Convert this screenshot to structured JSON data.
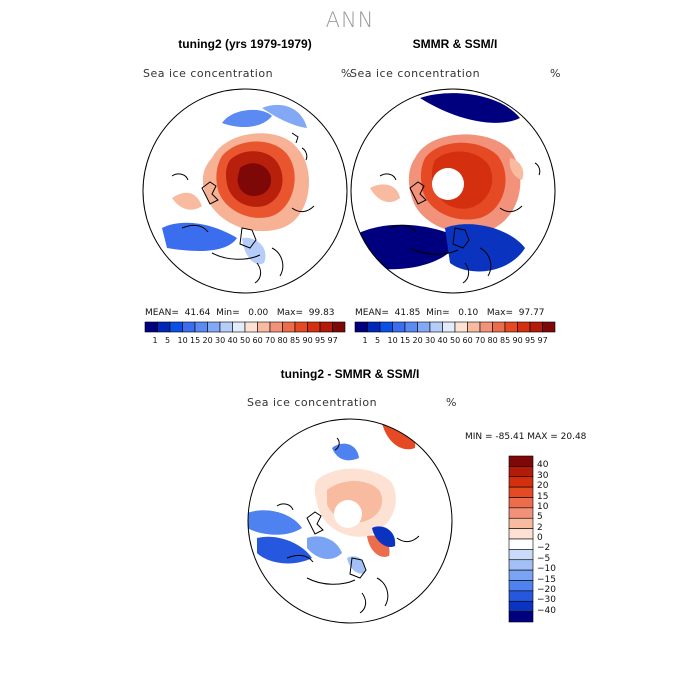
{
  "main_title": "ANN",
  "panel_left": {
    "title": "tuning2 (yrs 1979-1979)",
    "field_label": "Sea ice concentration",
    "units": "%",
    "stats": {
      "mean_label": "MEAN=",
      "mean": "41.64",
      "min_label": "Min=",
      "min": "0.00",
      "max_label": "Max=",
      "max": "99.83"
    }
  },
  "panel_right": {
    "title": "SMMR & SSM/I",
    "field_label": "Sea ice concentration",
    "units": "%",
    "stats": {
      "mean_label": "MEAN=",
      "mean": "41.85",
      "min_label": "Min=",
      "min": "0.10",
      "max_label": "Max=",
      "max": "97.77"
    }
  },
  "panel_diff": {
    "title": "tuning2 - SMMR & SSM/I",
    "field_label": "Sea ice concentration",
    "units": "%",
    "minmax_text": "MIN = -85.41 MAX =  20.48"
  },
  "chart_data": [
    {
      "type": "heatmap",
      "title": "tuning2 (yrs 1979-1979)",
      "variable": "Sea ice concentration",
      "units": "%",
      "projection": "north polar stereographic",
      "mean": 41.64,
      "min": 0.0,
      "max": 99.83,
      "colorbar_levels": [
        1,
        5,
        10,
        15,
        20,
        30,
        40,
        50,
        60,
        70,
        80,
        85,
        90,
        95,
        97
      ]
    },
    {
      "type": "heatmap",
      "title": "SMMR & SSM/I",
      "variable": "Sea ice concentration",
      "units": "%",
      "projection": "north polar stereographic",
      "mean": 41.85,
      "min": 0.1,
      "max": 97.77,
      "colorbar_levels": [
        1,
        5,
        10,
        15,
        20,
        30,
        40,
        50,
        60,
        70,
        80,
        85,
        90,
        95,
        97
      ]
    },
    {
      "type": "heatmap",
      "title": "tuning2 - SMMR & SSM/I",
      "variable": "Sea ice concentration",
      "units": "%",
      "projection": "north polar stereographic",
      "min": -85.41,
      "max": 20.48,
      "colorbar_levels": [
        40,
        30,
        20,
        15,
        10,
        5,
        2,
        0,
        -2,
        -5,
        -10,
        -15,
        -20,
        -30,
        -40
      ]
    }
  ],
  "colorbar_main": {
    "tick_labels": [
      "1",
      "5",
      "10",
      "15",
      "20",
      "30",
      "40",
      "50",
      "60",
      "70",
      "80",
      "85",
      "90",
      "95",
      "97"
    ],
    "colors": [
      "#00007e",
      "#0028b8",
      "#0a4fe6",
      "#3a6eee",
      "#5a8af2",
      "#83a8f5",
      "#b5cdf8",
      "#e3ecfb",
      "#fde1d3",
      "#f8bba0",
      "#f2927a",
      "#ec6d4b",
      "#e54a24",
      "#d43010",
      "#b21a0a",
      "#7e0808"
    ]
  },
  "colorbar_diff": {
    "tick_labels": [
      "40",
      "30",
      "20",
      "15",
      "10",
      "5",
      "2",
      "0",
      "−2",
      "−5",
      "−10",
      "−15",
      "−20",
      "−30",
      "−40"
    ],
    "colors": [
      "#7e0808",
      "#b21a0a",
      "#d43010",
      "#e54a24",
      "#ec6d4b",
      "#f2927a",
      "#f8bba0",
      "#fde1d3",
      "#ffffff",
      "#c9dbf9",
      "#a3c0f6",
      "#7ba3f3",
      "#4d82f0",
      "#2658df",
      "#0a34c0",
      "#00007e"
    ]
  }
}
